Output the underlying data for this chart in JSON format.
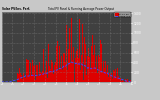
{
  "bg_color": "#c8c8c8",
  "plot_bg": "#404040",
  "bar_color": "#dd0000",
  "line_color": "#4444ff",
  "grid_color": "#606060",
  "n_bars": 200,
  "ymax": 1400,
  "yticks": [
    0,
    200,
    400,
    600,
    800,
    1000,
    1200,
    1400
  ],
  "legend_pv": "Tot PV Pnl",
  "legend_avg": "Runng Avg",
  "title_left": "Solar PV/Inv. Perf.",
  "title_right": "Total PV Panel & Running Average Power Output"
}
